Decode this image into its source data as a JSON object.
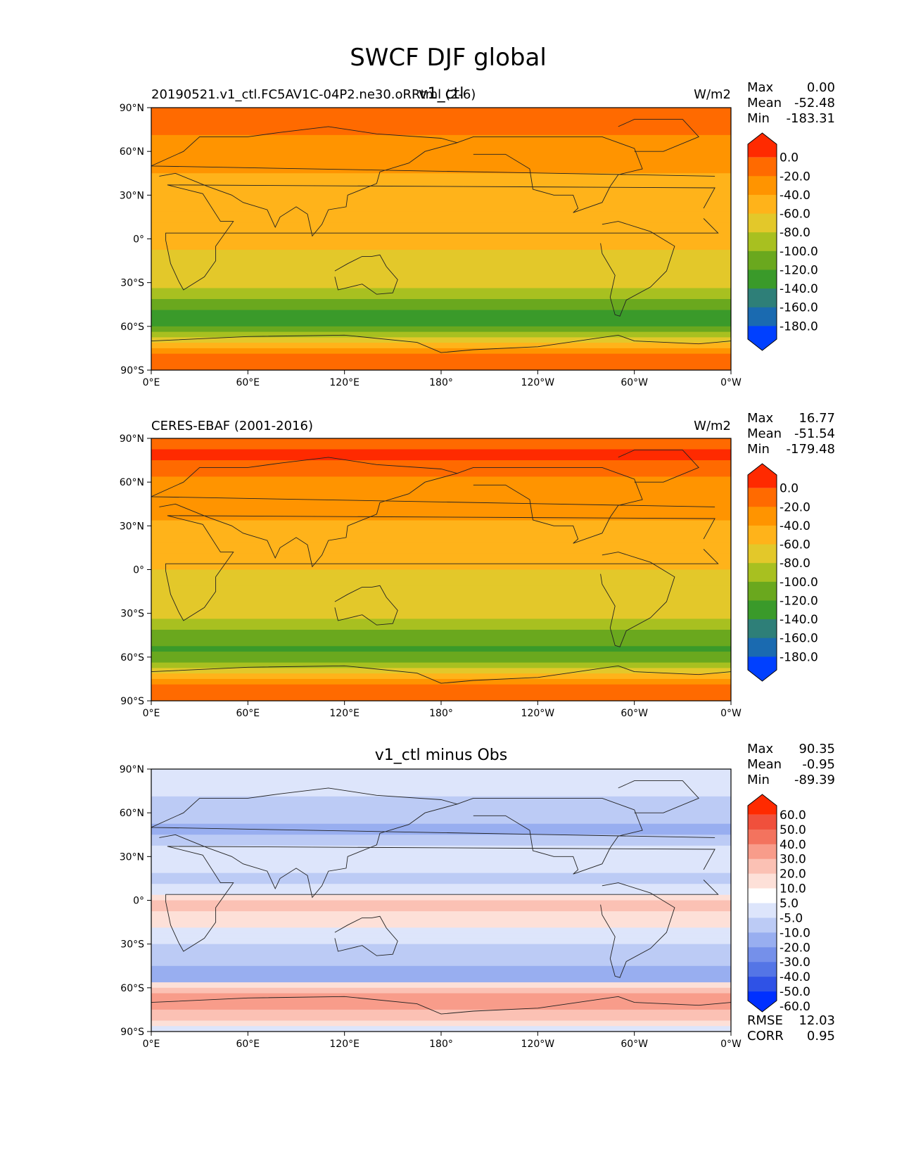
{
  "figure": {
    "suptitle": "SWCF DJF global"
  },
  "colors": {
    "swcf_levels": [
      "#ff2a00",
      "#ff6a00",
      "#ff9400",
      "#ffb31a",
      "#e3c82a",
      "#a8c020",
      "#6aa81e",
      "#3a9a2a",
      "#2e7f78",
      "#1a6ab0",
      "#0040ff"
    ],
    "diff_levels": [
      "#ff2a00",
      "#f0503c",
      "#f3735e",
      "#f89c8a",
      "#fbc1b4",
      "#fde0d8",
      "#ffffff",
      "#dde5fb",
      "#bccbf5",
      "#98aef0",
      "#7590ea",
      "#5475e6",
      "#2f52e6",
      "#0030ff"
    ]
  },
  "panels": [
    {
      "id": "model",
      "left_title": "20190521.v1_ctl.FC5AV1C-04P2.ne30.oRRtml (2-6)",
      "center_title": "v1_ctl",
      "units": "W/m2",
      "stats": [
        {
          "label": "Max",
          "value": "0.00"
        },
        {
          "label": "Mean",
          "value": "-52.48"
        },
        {
          "label": "Min",
          "value": "-183.31"
        }
      ],
      "colorbar_ticks": [
        "0.0",
        "-20.0",
        "-40.0",
        "-60.0",
        "-80.0",
        "-100.0",
        "-120.0",
        "-140.0",
        "-160.0",
        "-180.0"
      ],
      "palette": "swcf_levels"
    },
    {
      "id": "obs",
      "left_title": "CERES-EBAF (2001-2016)",
      "center_title": "",
      "units": "W/m2",
      "stats": [
        {
          "label": "Max",
          "value": "16.77"
        },
        {
          "label": "Mean",
          "value": "-51.54"
        },
        {
          "label": "Min",
          "value": "-179.48"
        }
      ],
      "colorbar_ticks": [
        "0.0",
        "-20.0",
        "-40.0",
        "-60.0",
        "-80.0",
        "-100.0",
        "-120.0",
        "-140.0",
        "-160.0",
        "-180.0"
      ],
      "palette": "swcf_levels"
    },
    {
      "id": "diff",
      "left_title": "",
      "center_title": "v1_ctl minus Obs",
      "units": "",
      "stats": [
        {
          "label": "Max",
          "value": "90.35"
        },
        {
          "label": "Mean",
          "value": "-0.95"
        },
        {
          "label": "Min",
          "value": "-89.39"
        }
      ],
      "colorbar_ticks": [
        "60.0",
        "50.0",
        "40.0",
        "30.0",
        "20.0",
        "10.0",
        "5.0",
        "-5.0",
        "-10.0",
        "-20.0",
        "-30.0",
        "-40.0",
        "-50.0",
        "-60.0"
      ],
      "palette": "diff_levels",
      "extra_stats": [
        {
          "label": "RMSE",
          "value": "12.03"
        },
        {
          "label": "CORR",
          "value": "0.95"
        }
      ]
    }
  ],
  "chart_data": [
    {
      "type": "heatmap",
      "title": "20190521.v1_ctl.FC5AV1C-04P2.ne30.oRRtml (2-6)",
      "units": "W/m2",
      "x_ticks": [
        "0°E",
        "60°E",
        "120°E",
        "180°",
        "120°W",
        "60°W",
        "0°W"
      ],
      "y_ticks": [
        "90°N",
        "60°N",
        "30°N",
        "0°",
        "30°S",
        "60°S",
        "90°S"
      ],
      "xlim": [
        0,
        360
      ],
      "ylim": [
        -90,
        90
      ],
      "levels": [
        0,
        -20,
        -40,
        -60,
        -80,
        -100,
        -120,
        -140,
        -160,
        -180
      ],
      "zonal_profile": {
        "lat": [
          90,
          75,
          60,
          45,
          30,
          15,
          0,
          -15,
          -30,
          -45,
          -55,
          -60,
          -70,
          -80,
          -90
        ],
        "value": [
          -15,
          -18,
          -25,
          -40,
          -48,
          -55,
          -58,
          -62,
          -65,
          -115,
          -140,
          -130,
          -75,
          -20,
          -10
        ]
      },
      "stats": {
        "max": 0.0,
        "mean": -52.48,
        "min": -183.31
      }
    },
    {
      "type": "heatmap",
      "title": "CERES-EBAF (2001-2016)",
      "units": "W/m2",
      "x_ticks": [
        "0°E",
        "60°E",
        "120°E",
        "180°",
        "120°W",
        "60°W",
        "0°W"
      ],
      "y_ticks": [
        "90°N",
        "60°N",
        "30°N",
        "0°",
        "30°S",
        "60°S",
        "90°S"
      ],
      "xlim": [
        0,
        360
      ],
      "ylim": [
        -90,
        90
      ],
      "levels": [
        0,
        -20,
        -40,
        -60,
        -80,
        -100,
        -120,
        -140,
        -160,
        -180
      ],
      "zonal_profile": {
        "lat": [
          90,
          80,
          60,
          45,
          30,
          15,
          0,
          -15,
          -30,
          -45,
          -55,
          -60,
          -70,
          -80,
          -90
        ],
        "value": [
          -15,
          5,
          -25,
          -35,
          -42,
          -52,
          -60,
          -60,
          -62,
          -110,
          -125,
          -110,
          -60,
          -5,
          -10
        ]
      },
      "stats": {
        "max": 16.77,
        "mean": -51.54,
        "min": -179.48
      }
    },
    {
      "type": "heatmap",
      "title": "v1_ctl minus Obs",
      "x_ticks": [
        "0°E",
        "60°E",
        "120°E",
        "180°",
        "120°W",
        "60°W",
        "0°W"
      ],
      "y_ticks": [
        "90°N",
        "60°N",
        "30°N",
        "0°",
        "30°S",
        "60°S",
        "90°S"
      ],
      "xlim": [
        0,
        360
      ],
      "ylim": [
        -90,
        90
      ],
      "levels": [
        60,
        50,
        40,
        30,
        20,
        10,
        5,
        -5,
        -10,
        -20,
        -30,
        -40,
        -50,
        -60
      ],
      "zonal_profile": {
        "lat": [
          90,
          60,
          45,
          30,
          15,
          0,
          -15,
          -30,
          -45,
          -55,
          -60,
          -70,
          -90
        ],
        "value": [
          0,
          -8,
          -12,
          4,
          -10,
          12,
          8,
          -6,
          -10,
          -15,
          18,
          25,
          0
        ]
      },
      "stats": {
        "max": 90.35,
        "mean": -0.95,
        "min": -89.39,
        "rmse": 12.03,
        "corr": 0.95
      }
    }
  ]
}
